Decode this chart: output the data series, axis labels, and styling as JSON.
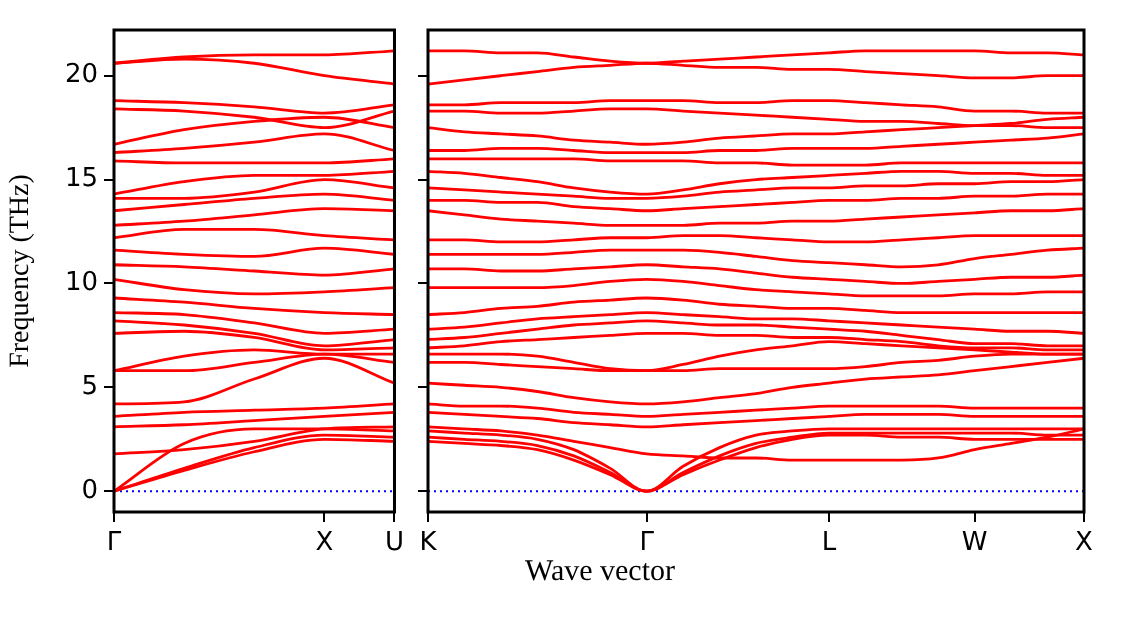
{
  "chart_data": [
    {
      "type": "line",
      "ylabel": "Frequency (THz)",
      "categories": [
        "Γ",
        null,
        null,
        "X",
        "U"
      ],
      "ylim": [
        -1,
        22.2
      ],
      "yticks": [
        0,
        5,
        10,
        15,
        20
      ],
      "grid": false,
      "legend": false,
      "marker": "none",
      "line_style": "solid",
      "ref_lines": [
        {
          "axis": "y",
          "value": 0,
          "color": "#0000ff",
          "line_style": "dotted"
        }
      ],
      "series": [
        {
          "color": "#ff0000",
          "values": [
            0,
            1.0,
            1.9,
            2.5,
            2.4
          ]
        },
        {
          "color": "#ff0000",
          "values": [
            0,
            1.1,
            2.1,
            2.7,
            2.6
          ]
        },
        {
          "color": "#ff0000",
          "values": [
            0,
            2.3,
            3.0,
            3.0,
            2.9
          ]
        },
        {
          "color": "#ff0000",
          "values": [
            1.8,
            2.0,
            2.4,
            3.0,
            3.1
          ]
        },
        {
          "color": "#ff0000",
          "values": [
            3.1,
            3.2,
            3.4,
            3.6,
            3.8
          ]
        },
        {
          "color": "#ff0000",
          "values": [
            3.6,
            3.8,
            3.9,
            4.0,
            4.2
          ]
        },
        {
          "color": "#ff0000",
          "values": [
            4.2,
            4.3,
            5.4,
            6.4,
            5.2
          ]
        },
        {
          "color": "#ff0000",
          "values": [
            5.8,
            5.8,
            6.2,
            6.6,
            6.2
          ]
        },
        {
          "color": "#ff0000",
          "values": [
            5.8,
            6.5,
            6.8,
            6.6,
            6.6
          ]
        },
        {
          "color": "#ff0000",
          "values": [
            7.6,
            7.7,
            7.4,
            6.8,
            6.9
          ]
        },
        {
          "color": "#ff0000",
          "values": [
            8.2,
            8.0,
            7.6,
            7.0,
            7.3
          ]
        },
        {
          "color": "#ff0000",
          "values": [
            8.6,
            8.5,
            8.1,
            7.6,
            7.8
          ]
        },
        {
          "color": "#ff0000",
          "values": [
            9.3,
            9.1,
            8.8,
            8.6,
            8.5
          ]
        },
        {
          "color": "#ff0000",
          "values": [
            10.2,
            9.7,
            9.5,
            9.6,
            9.8
          ]
        },
        {
          "color": "#ff0000",
          "values": [
            10.9,
            10.8,
            10.6,
            10.4,
            10.7
          ]
        },
        {
          "color": "#ff0000",
          "values": [
            11.6,
            11.4,
            11.3,
            11.7,
            11.4
          ]
        },
        {
          "color": "#ff0000",
          "values": [
            12.2,
            12.6,
            12.6,
            12.3,
            12.1
          ]
        },
        {
          "color": "#ff0000",
          "values": [
            12.8,
            13.0,
            13.3,
            13.6,
            13.5
          ]
        },
        {
          "color": "#ff0000",
          "values": [
            13.5,
            13.8,
            14.1,
            14.3,
            14.0
          ]
        },
        {
          "color": "#ff0000",
          "values": [
            14.1,
            14.1,
            14.4,
            15.0,
            14.6
          ]
        },
        {
          "color": "#ff0000",
          "values": [
            14.3,
            14.9,
            15.2,
            15.2,
            15.4
          ]
        },
        {
          "color": "#ff0000",
          "values": [
            15.9,
            15.8,
            15.8,
            15.8,
            16.0
          ]
        },
        {
          "color": "#ff0000",
          "values": [
            16.3,
            16.5,
            16.8,
            17.2,
            16.4
          ]
        },
        {
          "color": "#ff0000",
          "values": [
            16.7,
            17.4,
            17.8,
            18.0,
            17.5
          ]
        },
        {
          "color": "#ff0000",
          "values": [
            18.4,
            18.3,
            18.0,
            17.5,
            18.3
          ]
        },
        {
          "color": "#ff0000",
          "values": [
            18.8,
            18.7,
            18.5,
            18.2,
            18.6
          ]
        },
        {
          "color": "#ff0000",
          "values": [
            20.6,
            20.8,
            20.6,
            20.0,
            19.6
          ]
        },
        {
          "color": "#ff0000",
          "values": [
            20.6,
            20.9,
            21.0,
            21.0,
            21.2
          ]
        }
      ]
    },
    {
      "type": "line",
      "xlabel": "Wave vector",
      "categories": [
        "K",
        null,
        null,
        null,
        null,
        null,
        "Γ",
        null,
        null,
        null,
        null,
        "L",
        null,
        null,
        null,
        "W",
        null,
        null,
        "X"
      ],
      "ylim": [
        -1,
        22.2
      ],
      "yticks": [
        {
          "value": 0,
          "label": null
        },
        {
          "value": 5,
          "label": null
        },
        {
          "value": 10,
          "label": null
        },
        {
          "value": 15,
          "label": null
        },
        {
          "value": 20,
          "label": null
        }
      ],
      "tick_labels": "x",
      "grid": false,
      "legend": false,
      "marker": "none",
      "line_style": "solid",
      "ref_lines": [
        {
          "axis": "y",
          "value": 0,
          "color": "#0000ff",
          "line_style": "dotted"
        }
      ],
      "series": [
        {
          "color": "#ff0000",
          "values": [
            2.4,
            2.3,
            2.2,
            2.0,
            1.5,
            0.8,
            0,
            0.8,
            1.5,
            2.1,
            2.5,
            2.7,
            2.7,
            2.6,
            2.6,
            2.5,
            2.5,
            2.5,
            2.5
          ]
        },
        {
          "color": "#ff0000",
          "values": [
            2.6,
            2.5,
            2.4,
            2.2,
            1.7,
            0.9,
            0,
            0.9,
            1.7,
            2.3,
            2.6,
            2.8,
            2.8,
            2.8,
            2.8,
            2.8,
            2.8,
            2.7,
            2.7
          ]
        },
        {
          "color": "#ff0000",
          "values": [
            2.9,
            2.8,
            2.7,
            2.5,
            2.0,
            1.1,
            0,
            1.2,
            2.1,
            2.7,
            2.9,
            3.0,
            3.0,
            3.0,
            3.0,
            3.0,
            3.0,
            3.0,
            3.0
          ]
        },
        {
          "color": "#ff0000",
          "values": [
            3.1,
            3.0,
            2.9,
            2.7,
            2.4,
            2.1,
            1.8,
            1.7,
            1.6,
            1.6,
            1.5,
            1.5,
            1.5,
            1.5,
            1.6,
            2.0,
            2.3,
            2.6,
            3.0
          ]
        },
        {
          "color": "#ff0000",
          "values": [
            3.8,
            3.7,
            3.6,
            3.5,
            3.3,
            3.2,
            3.1,
            3.2,
            3.3,
            3.4,
            3.5,
            3.6,
            3.7,
            3.7,
            3.7,
            3.6,
            3.6,
            3.6,
            3.6
          ]
        },
        {
          "color": "#ff0000",
          "values": [
            4.2,
            4.1,
            4.1,
            4.0,
            3.8,
            3.7,
            3.6,
            3.7,
            3.8,
            3.9,
            4.0,
            4.1,
            4.1,
            4.1,
            4.1,
            4.0,
            4.0,
            4.0,
            4.0
          ]
        },
        {
          "color": "#ff0000",
          "values": [
            5.2,
            5.1,
            5.0,
            4.8,
            4.5,
            4.3,
            4.2,
            4.3,
            4.5,
            4.7,
            5.0,
            5.2,
            5.4,
            5.5,
            5.6,
            5.8,
            6.0,
            6.2,
            6.4
          ]
        },
        {
          "color": "#ff0000",
          "values": [
            6.2,
            6.2,
            6.1,
            6.0,
            5.9,
            5.8,
            5.8,
            5.8,
            5.9,
            5.9,
            5.9,
            5.9,
            6.0,
            6.2,
            6.3,
            6.5,
            6.6,
            6.6,
            6.6
          ]
        },
        {
          "color": "#ff0000",
          "values": [
            6.6,
            6.6,
            6.6,
            6.5,
            6.2,
            5.9,
            5.8,
            6.1,
            6.5,
            6.8,
            7.0,
            7.2,
            7.1,
            7.0,
            6.9,
            6.8,
            6.7,
            6.6,
            6.6
          ]
        },
        {
          "color": "#ff0000",
          "values": [
            6.9,
            7.0,
            7.2,
            7.3,
            7.4,
            7.5,
            7.6,
            7.6,
            7.5,
            7.5,
            7.4,
            7.4,
            7.3,
            7.2,
            7.0,
            6.9,
            6.9,
            6.8,
            6.8
          ]
        },
        {
          "color": "#ff0000",
          "values": [
            7.3,
            7.4,
            7.6,
            7.8,
            8.0,
            8.1,
            8.2,
            8.1,
            8.0,
            8.0,
            7.9,
            7.8,
            7.7,
            7.5,
            7.3,
            7.1,
            7.1,
            7.0,
            7.0
          ]
        },
        {
          "color": "#ff0000",
          "values": [
            7.8,
            7.9,
            8.1,
            8.3,
            8.4,
            8.5,
            8.6,
            8.5,
            8.4,
            8.3,
            8.3,
            8.2,
            8.1,
            8.0,
            7.9,
            7.8,
            7.7,
            7.7,
            7.6
          ]
        },
        {
          "color": "#ff0000",
          "values": [
            8.5,
            8.6,
            8.8,
            8.9,
            9.1,
            9.2,
            9.3,
            9.2,
            9.0,
            8.9,
            8.8,
            8.8,
            8.7,
            8.6,
            8.6,
            8.6,
            8.6,
            8.6,
            8.6
          ]
        },
        {
          "color": "#ff0000",
          "values": [
            9.8,
            9.8,
            9.8,
            9.8,
            9.9,
            10.1,
            10.2,
            10.1,
            9.9,
            9.7,
            9.6,
            9.5,
            9.4,
            9.4,
            9.4,
            9.5,
            9.5,
            9.6,
            9.6
          ]
        },
        {
          "color": "#ff0000",
          "values": [
            10.7,
            10.7,
            10.6,
            10.6,
            10.7,
            10.8,
            10.9,
            10.8,
            10.7,
            10.5,
            10.3,
            10.2,
            10.1,
            10.0,
            10.1,
            10.2,
            10.3,
            10.3,
            10.4
          ]
        },
        {
          "color": "#ff0000",
          "values": [
            11.4,
            11.4,
            11.4,
            11.4,
            11.5,
            11.6,
            11.6,
            11.6,
            11.5,
            11.3,
            11.1,
            11.0,
            10.9,
            10.8,
            10.9,
            11.2,
            11.4,
            11.6,
            11.7
          ]
        },
        {
          "color": "#ff0000",
          "values": [
            12.1,
            12.1,
            12.0,
            12.0,
            12.1,
            12.2,
            12.2,
            12.3,
            12.3,
            12.2,
            12.1,
            12.0,
            12.0,
            12.1,
            12.2,
            12.3,
            12.3,
            12.3,
            12.3
          ]
        },
        {
          "color": "#ff0000",
          "values": [
            13.5,
            13.3,
            13.1,
            13.0,
            12.9,
            12.8,
            12.8,
            12.8,
            12.9,
            12.9,
            13.0,
            13.0,
            13.1,
            13.2,
            13.3,
            13.4,
            13.5,
            13.5,
            13.6
          ]
        },
        {
          "color": "#ff0000",
          "values": [
            14.0,
            14.0,
            13.9,
            13.9,
            13.7,
            13.6,
            13.5,
            13.6,
            13.7,
            13.8,
            13.9,
            14.0,
            14.0,
            14.1,
            14.1,
            14.2,
            14.2,
            14.3,
            14.3
          ]
        },
        {
          "color": "#ff0000",
          "values": [
            14.6,
            14.5,
            14.4,
            14.3,
            14.2,
            14.1,
            14.1,
            14.2,
            14.4,
            14.5,
            14.6,
            14.6,
            14.7,
            14.7,
            14.8,
            14.8,
            14.9,
            14.9,
            15.0
          ]
        },
        {
          "color": "#ff0000",
          "values": [
            15.4,
            15.3,
            15.1,
            14.9,
            14.6,
            14.4,
            14.3,
            14.5,
            14.8,
            15.0,
            15.1,
            15.2,
            15.3,
            15.4,
            15.4,
            15.3,
            15.3,
            15.2,
            15.2
          ]
        },
        {
          "color": "#ff0000",
          "values": [
            16.0,
            16.0,
            16.0,
            16.0,
            16.0,
            15.9,
            15.9,
            15.9,
            15.8,
            15.8,
            15.7,
            15.7,
            15.7,
            15.8,
            15.8,
            15.8,
            15.8,
            15.8,
            15.8
          ]
        },
        {
          "color": "#ff0000",
          "values": [
            16.4,
            16.4,
            16.5,
            16.5,
            16.4,
            16.3,
            16.3,
            16.3,
            16.4,
            16.4,
            16.5,
            16.5,
            16.5,
            16.6,
            16.7,
            16.8,
            16.9,
            17.0,
            17.2
          ]
        },
        {
          "color": "#ff0000",
          "values": [
            17.5,
            17.3,
            17.2,
            17.1,
            16.9,
            16.8,
            16.7,
            16.8,
            17.0,
            17.1,
            17.2,
            17.2,
            17.3,
            17.4,
            17.5,
            17.6,
            17.7,
            17.9,
            18.0
          ]
        },
        {
          "color": "#ff0000",
          "values": [
            18.3,
            18.3,
            18.2,
            18.2,
            18.3,
            18.4,
            18.4,
            18.3,
            18.2,
            18.1,
            18.0,
            17.9,
            17.8,
            17.8,
            17.7,
            17.6,
            17.6,
            17.5,
            17.5
          ]
        },
        {
          "color": "#ff0000",
          "values": [
            18.6,
            18.6,
            18.7,
            18.7,
            18.7,
            18.8,
            18.8,
            18.8,
            18.7,
            18.7,
            18.8,
            18.8,
            18.7,
            18.6,
            18.5,
            18.3,
            18.3,
            18.2,
            18.2
          ]
        },
        {
          "color": "#ff0000",
          "values": [
            19.6,
            19.8,
            20.0,
            20.2,
            20.4,
            20.5,
            20.6,
            20.5,
            20.4,
            20.4,
            20.3,
            20.3,
            20.2,
            20.1,
            20.0,
            19.9,
            19.9,
            20.0,
            20.0
          ]
        },
        {
          "color": "#ff0000",
          "values": [
            21.2,
            21.2,
            21.1,
            21.1,
            20.9,
            20.7,
            20.6,
            20.7,
            20.8,
            20.9,
            21.0,
            21.1,
            21.2,
            21.2,
            21.2,
            21.2,
            21.1,
            21.1,
            21.0
          ]
        }
      ]
    }
  ]
}
